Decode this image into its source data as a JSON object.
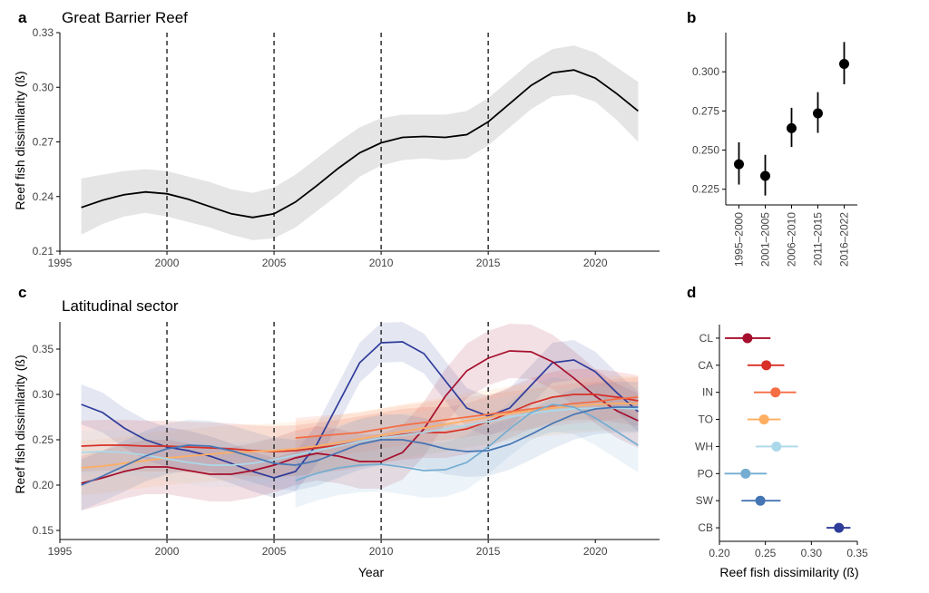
{
  "chart_data": [
    {
      "panel": "a",
      "type": "line",
      "title": "Great Barrier Reef",
      "xlabel": "",
      "ylabel": "Reef fish dissimilarity (ß)",
      "xlim": [
        1995,
        2023
      ],
      "ylim": [
        0.21,
        0.33
      ],
      "xticks": [
        1995,
        2000,
        2005,
        2010,
        2015,
        2020
      ],
      "yticks": [
        0.21,
        0.24,
        0.27,
        0.3,
        0.33
      ],
      "ytick_labels": [
        "0.21",
        "0.24",
        "0.27",
        "0.30",
        "0.33"
      ],
      "vlines": [
        2000,
        2005,
        2010,
        2015
      ],
      "series": [
        {
          "name": "Great Barrier Reef",
          "color": "#000000",
          "x": [
            1996,
            1997,
            1998,
            1999,
            2000,
            2001,
            2002,
            2003,
            2004,
            2005,
            2006,
            2007,
            2008,
            2009,
            2010,
            2011,
            2012,
            2013,
            2014,
            2015,
            2016,
            2017,
            2018,
            2019,
            2020,
            2021,
            2022
          ],
          "y": [
            0.234,
            0.238,
            0.241,
            0.2425,
            0.2415,
            0.2385,
            0.2345,
            0.2305,
            0.2285,
            0.2305,
            0.237,
            0.246,
            0.2555,
            0.264,
            0.2695,
            0.2725,
            0.273,
            0.2725,
            0.274,
            0.281,
            0.291,
            0.301,
            0.308,
            0.3095,
            0.305,
            0.2965,
            0.287
          ],
          "lower": [
            0.219,
            0.225,
            0.229,
            0.231,
            0.229,
            0.226,
            0.223,
            0.219,
            0.216,
            0.217,
            0.223,
            0.232,
            0.241,
            0.251,
            0.257,
            0.26,
            0.261,
            0.26,
            0.261,
            0.268,
            0.278,
            0.288,
            0.295,
            0.296,
            0.292,
            0.282,
            0.27
          ],
          "upper": [
            0.25,
            0.252,
            0.254,
            0.255,
            0.254,
            0.251,
            0.248,
            0.244,
            0.242,
            0.245,
            0.252,
            0.261,
            0.27,
            0.278,
            0.283,
            0.285,
            0.285,
            0.285,
            0.287,
            0.294,
            0.304,
            0.314,
            0.321,
            0.323,
            0.319,
            0.311,
            0.303
          ]
        }
      ]
    },
    {
      "panel": "b",
      "type": "scatter",
      "title": "",
      "xlabel": "",
      "ylabel": "",
      "ylim": [
        0.215,
        0.325
      ],
      "yticks": [
        0.225,
        0.25,
        0.275,
        0.3
      ],
      "ytick_labels": [
        "0.225",
        "0.250",
        "0.275",
        "0.300"
      ],
      "categories": [
        "1995–2000",
        "2001–2005",
        "2006–2010",
        "2011–2015",
        "2016–2022"
      ],
      "values": [
        0.241,
        0.2335,
        0.264,
        0.2735,
        0.305
      ],
      "lower": [
        0.228,
        0.221,
        0.252,
        0.261,
        0.292
      ],
      "upper": [
        0.255,
        0.247,
        0.277,
        0.287,
        0.319
      ]
    },
    {
      "panel": "c",
      "type": "line",
      "title": "Latitudinal sector",
      "xlabel": "Year",
      "ylabel": "Reef fish dissimilarity (ß)",
      "xlim": [
        1995,
        2023
      ],
      "ylim": [
        0.14,
        0.38
      ],
      "xticks": [
        1995,
        2000,
        2005,
        2010,
        2015,
        2020
      ],
      "yticks": [
        0.15,
        0.2,
        0.25,
        0.3,
        0.35
      ],
      "ytick_labels": [
        "0.15",
        "0.20",
        "0.25",
        "0.30",
        "0.35"
      ],
      "vlines": [
        2000,
        2005,
        2010,
        2015
      ],
      "series": [
        {
          "name": "CB",
          "color": "#2f3d9a",
          "x": [
            1996,
            1997,
            1998,
            1999,
            2000,
            2001,
            2002,
            2003,
            2004,
            2005,
            2006,
            2007,
            2008,
            2009,
            2010,
            2011,
            2012,
            2013,
            2014,
            2015,
            2016,
            2017,
            2018,
            2019,
            2020,
            2021,
            2022
          ],
          "y": [
            0.289,
            0.28,
            0.263,
            0.25,
            0.242,
            0.238,
            0.232,
            0.224,
            0.215,
            0.208,
            0.215,
            0.245,
            0.29,
            0.335,
            0.357,
            0.358,
            0.345,
            0.315,
            0.285,
            0.276,
            0.285,
            0.31,
            0.335,
            0.338,
            0.325,
            0.302,
            0.281
          ],
          "band": 0.022
        },
        {
          "name": "CL",
          "color": "#a50f2d",
          "x": [
            1996,
            1997,
            1998,
            1999,
            2000,
            2001,
            2002,
            2003,
            2004,
            2005,
            2006,
            2007,
            2008,
            2009,
            2010,
            2011,
            2012,
            2013,
            2014,
            2015,
            2016,
            2017,
            2018,
            2019,
            2020,
            2021,
            2022
          ],
          "y": [
            0.202,
            0.208,
            0.215,
            0.22,
            0.22,
            0.216,
            0.212,
            0.212,
            0.216,
            0.222,
            0.23,
            0.235,
            0.232,
            0.226,
            0.226,
            0.236,
            0.262,
            0.298,
            0.326,
            0.34,
            0.348,
            0.347,
            0.336,
            0.318,
            0.298,
            0.282,
            0.271
          ],
          "band": 0.03
        },
        {
          "name": "CA",
          "color": "#d73027",
          "x": [
            1996,
            1997,
            1998,
            1999,
            2000,
            2001,
            2002,
            2003,
            2004,
            2005,
            2006,
            2007,
            2008,
            2009,
            2010,
            2011,
            2012,
            2013,
            2014,
            2015,
            2016,
            2017,
            2018,
            2019,
            2020,
            2021,
            2022
          ],
          "y": [
            0.243,
            0.244,
            0.244,
            0.243,
            0.243,
            0.242,
            0.241,
            0.24,
            0.238,
            0.237,
            0.238,
            0.241,
            0.244,
            0.248,
            0.252,
            0.256,
            0.258,
            0.258,
            0.262,
            0.27,
            0.28,
            0.29,
            0.297,
            0.3,
            0.3,
            0.297,
            0.293
          ],
          "band": 0.028
        },
        {
          "name": "IN",
          "color": "#f46d43",
          "x": [
            2006,
            2007,
            2008,
            2009,
            2010,
            2011,
            2012,
            2013,
            2014,
            2015,
            2016,
            2017,
            2018,
            2019,
            2020,
            2021,
            2022
          ],
          "y": [
            0.252,
            0.254,
            0.256,
            0.258,
            0.262,
            0.266,
            0.269,
            0.272,
            0.275,
            0.278,
            0.281,
            0.284,
            0.287,
            0.29,
            0.292,
            0.295,
            0.297
          ],
          "band": 0.022
        },
        {
          "name": "TO",
          "color": "#fdae61",
          "x": [
            1996,
            1997,
            1998,
            1999,
            2000,
            2001,
            2002,
            2003,
            2004,
            2005,
            2006,
            2007,
            2008,
            2009,
            2010,
            2011,
            2012,
            2013,
            2014,
            2015,
            2016,
            2017,
            2018,
            2019,
            2020,
            2021,
            2022
          ],
          "y": [
            0.219,
            0.221,
            0.224,
            0.227,
            0.23,
            0.232,
            0.234,
            0.236,
            0.237,
            0.238,
            0.24,
            0.243,
            0.247,
            0.251,
            0.255,
            0.259,
            0.263,
            0.267,
            0.271,
            0.275,
            0.279,
            0.282,
            0.285,
            0.287,
            0.289,
            0.29,
            0.29
          ],
          "band": 0.03
        },
        {
          "name": "WH",
          "color": "#abd9e9",
          "x": [
            1996,
            1997,
            1998,
            1999,
            2000,
            2001,
            2002,
            2003,
            2004,
            2005,
            2006,
            2007,
            2008,
            2009,
            2010,
            2011,
            2012,
            2013,
            2014,
            2015,
            2016,
            2017,
            2018,
            2019,
            2020,
            2021,
            2022
          ],
          "y": [
            0.236,
            0.237,
            0.236,
            0.233,
            0.229,
            0.225,
            0.222,
            0.222,
            0.224,
            0.228,
            0.233,
            0.238,
            0.243,
            0.248,
            0.252,
            0.255,
            0.258,
            0.262,
            0.266,
            0.27,
            0.275,
            0.279,
            0.282,
            0.284,
            0.285,
            0.285,
            0.284
          ],
          "band": 0.024
        },
        {
          "name": "PO",
          "color": "#74add1",
          "x": [
            2006,
            2007,
            2008,
            2009,
            2010,
            2011,
            2012,
            2013,
            2014,
            2015,
            2016,
            2017,
            2018,
            2019,
            2020,
            2021,
            2022
          ],
          "y": [
            0.205,
            0.213,
            0.219,
            0.222,
            0.223,
            0.22,
            0.216,
            0.217,
            0.225,
            0.242,
            0.262,
            0.28,
            0.289,
            0.286,
            0.274,
            0.259,
            0.244
          ],
          "band": 0.03
        },
        {
          "name": "SW",
          "color": "#4575b4",
          "x": [
            1996,
            1997,
            1998,
            1999,
            2000,
            2001,
            2002,
            2003,
            2004,
            2005,
            2006,
            2007,
            2008,
            2009,
            2010,
            2011,
            2012,
            2013,
            2014,
            2015,
            2016,
            2017,
            2018,
            2019,
            2020,
            2021,
            2022
          ],
          "y": [
            0.2,
            0.21,
            0.221,
            0.232,
            0.24,
            0.244,
            0.243,
            0.238,
            0.231,
            0.224,
            0.222,
            0.227,
            0.236,
            0.245,
            0.25,
            0.25,
            0.246,
            0.24,
            0.237,
            0.238,
            0.245,
            0.256,
            0.268,
            0.278,
            0.284,
            0.286,
            0.286
          ],
          "band": 0.028
        }
      ]
    },
    {
      "panel": "d",
      "type": "scatter",
      "title": "",
      "xlabel": "Reef fish dissimilarity (ß)",
      "ylabel": "",
      "xlim": [
        0.2,
        0.35
      ],
      "xticks": [
        0.2,
        0.25,
        0.3,
        0.35
      ],
      "xtick_labels": [
        "0.20",
        "0.25",
        "0.30",
        "0.35"
      ],
      "categories": [
        "CL",
        "CA",
        "IN",
        "TO",
        "WH",
        "PO",
        "SW",
        "CB"
      ],
      "colors": [
        "#a50f2d",
        "#d73027",
        "#f46d43",
        "#fdae61",
        "#abd9e9",
        "#74add1",
        "#4575b4",
        "#2f3d9a"
      ],
      "values": [
        0.2305,
        0.251,
        0.261,
        0.2485,
        0.262,
        0.2285,
        0.2445,
        0.33
      ],
      "lower": [
        0.206,
        0.2305,
        0.2375,
        0.2305,
        0.2395,
        0.2055,
        0.224,
        0.3165
      ],
      "upper": [
        0.2555,
        0.2705,
        0.2835,
        0.2665,
        0.2855,
        0.2515,
        0.2665,
        0.3425
      ]
    }
  ],
  "panel_labels": {
    "a": "a",
    "b": "b",
    "c": "c",
    "d": "d"
  }
}
